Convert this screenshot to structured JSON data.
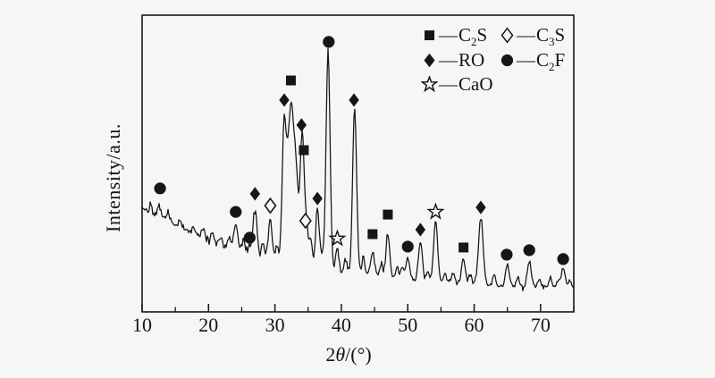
{
  "figure": {
    "ylabel": "Intensity/a.u.",
    "xlabel_parts": {
      "pre": "2",
      "theta": "θ",
      "post": "/(°)"
    }
  },
  "legend": {
    "separator": "—",
    "items": [
      {
        "name": "C2S",
        "symbol": "square-filled",
        "pre": "C",
        "sub": "2",
        "post": "S"
      },
      {
        "name": "C3S",
        "symbol": "diamond-open",
        "pre": "C",
        "sub": "3",
        "post": "S"
      },
      {
        "name": "RO",
        "symbol": "diamond-filled",
        "pre": "RO",
        "sub": "",
        "post": ""
      },
      {
        "name": "C2F",
        "symbol": "circle-filled",
        "pre": "C",
        "sub": "2",
        "post": "F"
      },
      {
        "name": "CaO",
        "symbol": "star-open",
        "pre": "CaO",
        "sub": "",
        "post": ""
      }
    ]
  },
  "chart_data": {
    "type": "line",
    "title": "",
    "xlabel": "2θ/(°)",
    "ylabel": "Intensity/a.u.",
    "x_range": [
      10,
      75
    ],
    "x_ticks": [
      10,
      20,
      30,
      40,
      50,
      60,
      70
    ],
    "x_minor_ticks": [
      15,
      25,
      35,
      45,
      55,
      65,
      75
    ],
    "y_axis_note": "arbitrary units, no tick labels; intensity normalized 0-1000 of plot height",
    "grid": false,
    "legend_position": "top-right inside plot",
    "baseline": [
      [
        10,
        352
      ],
      [
        14,
        304
      ],
      [
        18,
        262
      ],
      [
        22,
        226
      ],
      [
        26,
        199
      ],
      [
        30,
        172
      ],
      [
        34,
        154
      ],
      [
        38,
        139
      ],
      [
        42,
        130
      ],
      [
        46,
        120
      ],
      [
        50,
        108
      ],
      [
        55,
        101
      ],
      [
        60,
        93
      ],
      [
        65,
        87
      ],
      [
        70,
        84
      ],
      [
        75,
        78
      ]
    ],
    "peaks": [
      [
        12.6,
        39,
        0.25
      ],
      [
        24.1,
        79,
        0.28
      ],
      [
        26.2,
        25,
        0.25
      ],
      [
        27.0,
        163,
        0.28
      ],
      [
        29.3,
        142,
        0.28
      ],
      [
        31.4,
        490,
        0.3
      ],
      [
        32.0,
        250,
        0.25
      ],
      [
        32.5,
        480,
        0.3
      ],
      [
        33.15,
        330,
        0.3
      ],
      [
        34.1,
        455,
        0.32
      ],
      [
        34.8,
        115,
        0.25
      ],
      [
        36.4,
        202,
        0.28
      ],
      [
        38.0,
        744,
        0.3
      ],
      [
        39.4,
        78,
        0.25
      ],
      [
        42.0,
        554,
        0.3
      ],
      [
        44.7,
        80,
        0.28
      ],
      [
        47.0,
        147,
        0.28
      ],
      [
        50.0,
        79,
        0.28
      ],
      [
        51.9,
        138,
        0.28
      ],
      [
        54.2,
        205,
        0.3
      ],
      [
        58.4,
        82,
        0.28
      ],
      [
        61.0,
        227,
        0.35
      ],
      [
        65.0,
        70,
        0.28
      ],
      [
        68.3,
        88,
        0.3
      ],
      [
        73.4,
        69,
        0.3
      ]
    ],
    "minor_bumps": [
      [
        11.3,
        25
      ],
      [
        13.9,
        30
      ],
      [
        15.8,
        25
      ],
      [
        17.6,
        22
      ],
      [
        19.2,
        25
      ],
      [
        20.6,
        30
      ],
      [
        21.8,
        25
      ],
      [
        23.1,
        30
      ],
      [
        25.3,
        40
      ],
      [
        28.2,
        50
      ],
      [
        30.3,
        55
      ],
      [
        35.4,
        90
      ],
      [
        37.1,
        45
      ],
      [
        40.6,
        45
      ],
      [
        43.3,
        60
      ],
      [
        46.0,
        40
      ],
      [
        48.4,
        35
      ],
      [
        49.2,
        35
      ],
      [
        53.0,
        30
      ],
      [
        55.6,
        30
      ],
      [
        56.8,
        35
      ],
      [
        59.4,
        30
      ],
      [
        63.0,
        35
      ],
      [
        66.6,
        30
      ],
      [
        69.8,
        25
      ],
      [
        71.5,
        35
      ],
      [
        72.6,
        25
      ],
      [
        74.4,
        30
      ]
    ],
    "noise": {
      "seed": 42,
      "base_amp": 15,
      "amp_slope": -0.11
    },
    "markers": [
      {
        "two_theta": 12.7,
        "intensity": 416,
        "symbol": "circle-filled",
        "phase": "C2F"
      },
      {
        "two_theta": 24.1,
        "intensity": 337,
        "symbol": "circle-filled",
        "phase": "C2F"
      },
      {
        "two_theta": 26.2,
        "intensity": 250,
        "symbol": "circle-filled",
        "phase": "C2F"
      },
      {
        "two_theta": 27.0,
        "intensity": 398,
        "symbol": "diamond-filled",
        "phase": "RO"
      },
      {
        "two_theta": 29.3,
        "intensity": 358,
        "symbol": "diamond-open",
        "phase": "C3S"
      },
      {
        "two_theta": 31.4,
        "intensity": 714,
        "symbol": "diamond-filled",
        "phase": "RO"
      },
      {
        "two_theta": 32.4,
        "intensity": 780,
        "symbol": "square-filled",
        "phase": "C2S"
      },
      {
        "two_theta": 34.0,
        "intensity": 630,
        "symbol": "diamond-filled",
        "phase": "RO"
      },
      {
        "two_theta": 34.35,
        "intensity": 545,
        "symbol": "square-filled",
        "phase": "C2S"
      },
      {
        "two_theta": 34.6,
        "intensity": 307,
        "symbol": "diamond-open",
        "phase": "C3S"
      },
      {
        "two_theta": 36.4,
        "intensity": 382,
        "symbol": "diamond-filled",
        "phase": "RO"
      },
      {
        "two_theta": 38.1,
        "intensity": 910,
        "symbol": "circle-filled",
        "phase": "C2F"
      },
      {
        "two_theta": 39.4,
        "intensity": 247,
        "symbol": "star-open",
        "phase": "CaO"
      },
      {
        "two_theta": 41.9,
        "intensity": 714,
        "symbol": "diamond-filled",
        "phase": "RO"
      },
      {
        "two_theta": 44.7,
        "intensity": 262,
        "symbol": "square-filled",
        "phase": "C2S"
      },
      {
        "two_theta": 47.0,
        "intensity": 328,
        "symbol": "square-filled",
        "phase": "C2S"
      },
      {
        "two_theta": 50.0,
        "intensity": 220,
        "symbol": "circle-filled",
        "phase": "C2F"
      },
      {
        "two_theta": 51.9,
        "intensity": 277,
        "symbol": "diamond-filled",
        "phase": "RO"
      },
      {
        "two_theta": 54.2,
        "intensity": 337,
        "symbol": "star-open",
        "phase": "CaO"
      },
      {
        "two_theta": 58.4,
        "intensity": 217,
        "symbol": "square-filled",
        "phase": "C2S"
      },
      {
        "two_theta": 61.0,
        "intensity": 352,
        "symbol": "diamond-filled",
        "phase": "RO"
      },
      {
        "two_theta": 64.9,
        "intensity": 193,
        "symbol": "circle-filled",
        "phase": "C2F"
      },
      {
        "two_theta": 68.3,
        "intensity": 208,
        "symbol": "circle-filled",
        "phase": "C2F"
      },
      {
        "two_theta": 73.4,
        "intensity": 178,
        "symbol": "circle-filled",
        "phase": "C2F"
      }
    ]
  }
}
